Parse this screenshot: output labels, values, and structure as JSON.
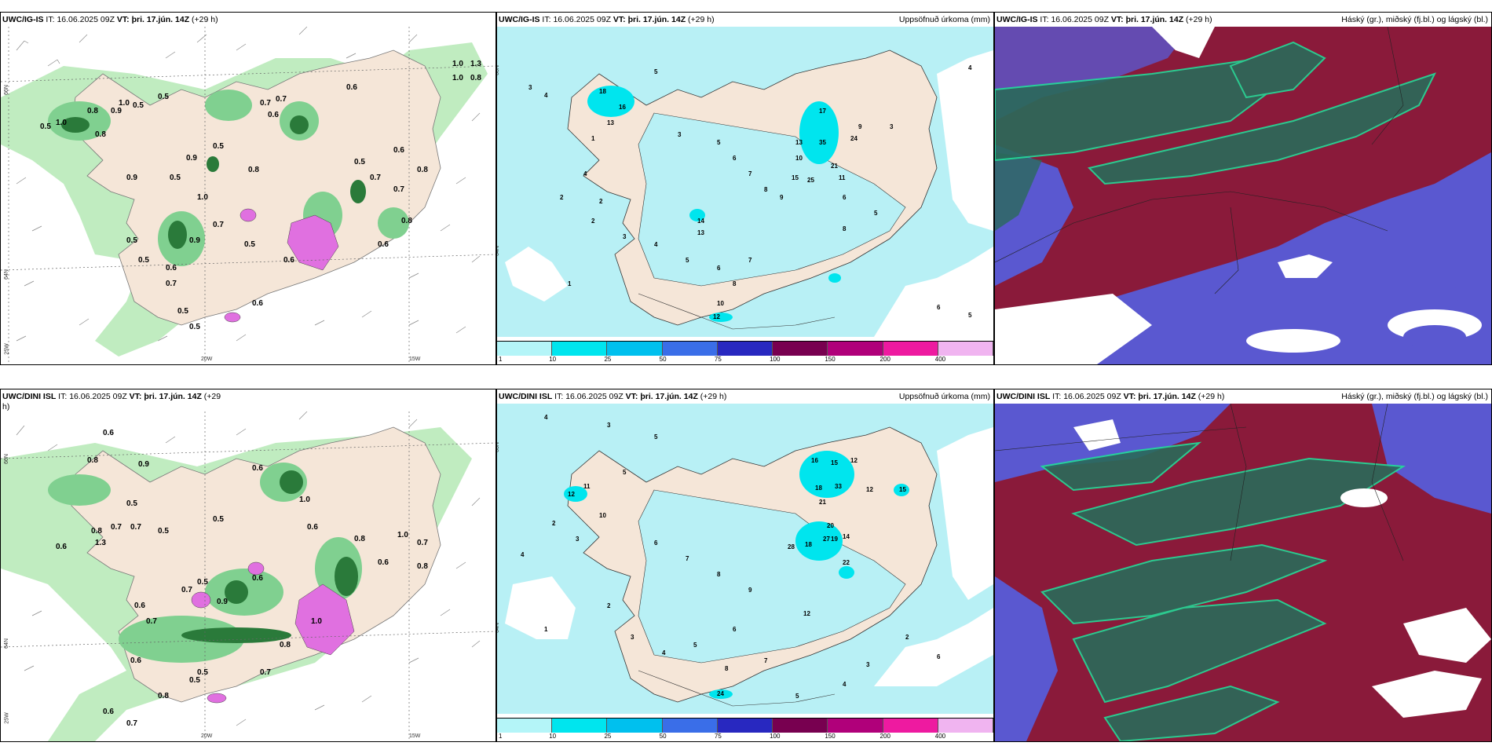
{
  "panels": {
    "top_left": {
      "model": "UWC/IG-IS",
      "it_label": "IT:",
      "it": "16.06.2025 09Z",
      "vt_label": "VT:",
      "vt": "þri. 17.jún. 14Z",
      "lead": "(+29 h)"
    },
    "top_mid": {
      "model": "UWC/IG-IS",
      "it_label": "IT:",
      "it": "16.06.2025 09Z",
      "vt_label": "VT:",
      "vt": "þri. 17.jún. 14Z",
      "lead": "(+29 h)",
      "right_title": "Uppsöfnuð úrkoma (mm)"
    },
    "top_right": {
      "model": "UWC/IG-IS",
      "it_label": "IT:",
      "it": "16.06.2025 09Z",
      "vt_label": "VT:",
      "vt": "þri. 17.jún. 14Z",
      "lead": "(+29 h)",
      "right_title": "Háský (gr.), miðský (fj.bl.) og lágský (bl.)"
    },
    "bottom_left": {
      "model": "UWC/DINI ISL",
      "it_label": "IT:",
      "it": "16.06.2025 09Z",
      "vt_label": "VT:",
      "vt": "þri. 17.jún. 14Z",
      "lead": "(+29",
      "lead_wrap": "h)"
    },
    "bottom_mid": {
      "model": "UWC/DINI ISL",
      "it_label": "IT:",
      "it": "16.06.2025 09Z",
      "vt_label": "VT:",
      "vt": "þri. 17.jún. 14Z",
      "lead": "(+29 h)",
      "right_title": "Uppsöfnuð úrkoma (mm)"
    },
    "bottom_right": {
      "model": "UWC/DINI ISL",
      "it_label": "IT:",
      "it": "16.06.2025 09Z",
      "vt_label": "VT:",
      "vt": "þri. 17.jún. 14Z",
      "lead": "(+29 h)",
      "right_title": "Háský (gr.), miðský (fj.bl.) og lágský (bl.)"
    }
  },
  "axis_labels": {
    "lat66": "66N",
    "lat64": "64N",
    "lon25": "25W",
    "lon20": "20W",
    "lon15": "15W"
  },
  "colorbar": {
    "ticks": [
      "1",
      "10",
      "25",
      "50",
      "75",
      "100",
      "150",
      "200",
      "400"
    ],
    "colors": [
      "#b4f5f8",
      "#00e5ee",
      "#00c0ee",
      "#3a6ee8",
      "#2828c0",
      "#780050",
      "#b0007a",
      "#ee1aa0",
      "#f0b4f0"
    ]
  },
  "colors": {
    "land": "#f5e6d8",
    "sea": "#ffffff",
    "precip_light": "#b8f0f5",
    "green_light": "#c0ecc0",
    "green_mid": "#80d090",
    "green_dark": "#2a7a3a",
    "cloud_high": "#8a1a3a",
    "cloud_mid": "#2a6a5a",
    "cloud_low": "#5a58d0",
    "purple": "#e070e0"
  },
  "precip_top_left": [
    "0.6",
    "0.5",
    "0.7",
    "0.8",
    "0.9",
    "1.0",
    "0.5",
    "0.6",
    "0.7",
    "0.5",
    "0.9",
    "0.8",
    "0.9",
    "0.5",
    "0.6",
    "0.7",
    "0.5",
    "1.0",
    "0.8",
    "0.5",
    "0.6",
    "0.9",
    "0.7",
    "0.5",
    "0.6",
    "0.5",
    "0.8",
    "0.7",
    "0.5",
    "0.6",
    "0.6",
    "1.0",
    "0.8",
    "0.5",
    "0.5",
    "0.7"
  ],
  "precip_top_right_corner": [
    "1.0",
    "1.3",
    "1.0",
    "0.8"
  ],
  "precip_bottom_left": [
    "0.6",
    "0.8",
    "0.9",
    "0.5",
    "0.7",
    "0.6",
    "0.7",
    "0.8",
    "0.5",
    "1.3",
    "0.6",
    "0.5",
    "1.0",
    "0.6",
    "0.8",
    "1.0",
    "0.7",
    "0.6",
    "0.8",
    "0.7",
    "0.5",
    "0.6",
    "1.0",
    "0.9",
    "0.7",
    "0.6",
    "0.8",
    "0.5",
    "0.7",
    "0.6",
    "0.5",
    "0.8",
    "0.6",
    "0.7"
  ],
  "accum_top_mid": [
    "3",
    "4",
    "5",
    "17",
    "35",
    "24",
    "13",
    "10",
    "15",
    "25",
    "21",
    "11",
    "18",
    "16",
    "13",
    "2",
    "3",
    "4",
    "5",
    "6",
    "7",
    "8",
    "9",
    "1",
    "2",
    "3",
    "4",
    "5",
    "6",
    "7",
    "8",
    "10",
    "12",
    "14",
    "13",
    "6",
    "5",
    "1",
    "2",
    "3",
    "6",
    "5",
    "4",
    "8",
    "9"
  ],
  "accum_bottom_mid": [
    "4",
    "3",
    "5",
    "16",
    "15",
    "12",
    "18",
    "33",
    "12",
    "21",
    "20",
    "19",
    "15",
    "14",
    "27",
    "28",
    "18",
    "22",
    "12",
    "11",
    "10",
    "2",
    "3",
    "4",
    "5",
    "6",
    "7",
    "8",
    "9",
    "1",
    "2",
    "3",
    "4",
    "5",
    "6",
    "7",
    "8",
    "24",
    "12",
    "2",
    "3",
    "4",
    "5",
    "6"
  ]
}
